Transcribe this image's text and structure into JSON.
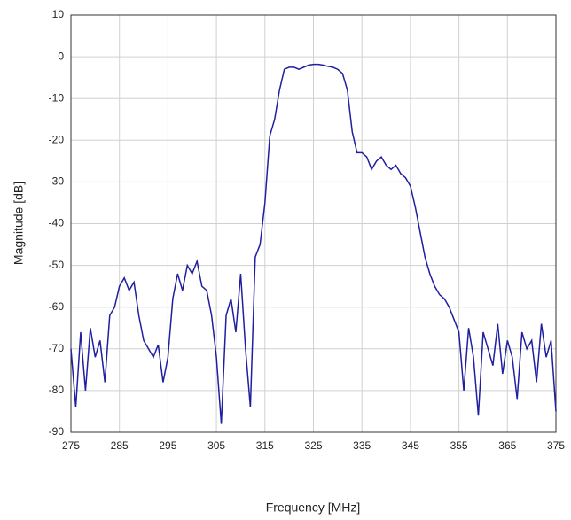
{
  "chart_data": {
    "type": "line",
    "x_label": "Frequency [MHz]",
    "y_label": "Magnitude [dB]",
    "x": [
      275,
      276,
      277,
      278,
      279,
      280,
      281,
      282,
      283,
      284,
      285,
      286,
      287,
      288,
      289,
      290,
      291,
      292,
      293,
      294,
      295,
      296,
      297,
      298,
      299,
      300,
      301,
      302,
      303,
      304,
      305,
      306,
      307,
      308,
      309,
      310,
      311,
      312,
      313,
      314,
      315,
      316,
      317,
      318,
      319,
      320,
      321,
      322,
      323,
      324,
      325,
      326,
      327,
      328,
      329,
      330,
      331,
      332,
      333,
      334,
      335,
      336,
      337,
      338,
      339,
      340,
      341,
      342,
      343,
      344,
      345,
      346,
      347,
      348,
      349,
      350,
      351,
      352,
      353,
      354,
      355,
      356,
      357,
      358,
      359,
      360,
      361,
      362,
      363,
      364,
      365,
      366,
      367,
      368,
      369,
      370,
      371,
      372,
      373,
      374,
      375
    ],
    "series": [
      {
        "color": "#1f1fa0",
        "values": [
          -70,
          -84,
          -66,
          -80,
          -65,
          -72,
          -68,
          -78,
          -62,
          -60,
          -55,
          -53,
          -56,
          -54,
          -62,
          -68,
          -70,
          -72,
          -69,
          -78,
          -72,
          -58,
          -52,
          -56,
          -50,
          -52,
          -49,
          -55,
          -56,
          -62,
          -72,
          -88,
          -62,
          -58,
          -66,
          -52,
          -70,
          -84,
          -48,
          -45,
          -35,
          -19,
          -15,
          -8,
          -3,
          -2.5,
          -2.5,
          -3,
          -2.5,
          -2,
          -1.8,
          -1.8,
          -2,
          -2.3,
          -2.5,
          -3,
          -4,
          -8,
          -18,
          -23,
          -23,
          -24,
          -27,
          -25,
          -24,
          -26,
          -27,
          -26,
          -28,
          -29,
          -31,
          -36,
          -42,
          -48,
          -52,
          -55,
          -57,
          -58,
          -60,
          -63,
          -66,
          -80,
          -65,
          -72,
          -86,
          -66,
          -70,
          -74,
          -64,
          -76,
          -68,
          -72,
          -82,
          -66,
          -70,
          -68,
          -78,
          -64,
          -72,
          -68,
          -85
        ]
      }
    ],
    "xlim": [
      275,
      375
    ],
    "xticks": [
      275,
      285,
      295,
      305,
      315,
      325,
      335,
      345,
      355,
      365,
      375
    ],
    "ylim": [
      -90,
      10
    ],
    "yticks": [
      10,
      0,
      -10,
      -20,
      -30,
      -40,
      -50,
      -60,
      -70,
      -80,
      -90
    ],
    "grid": true
  }
}
